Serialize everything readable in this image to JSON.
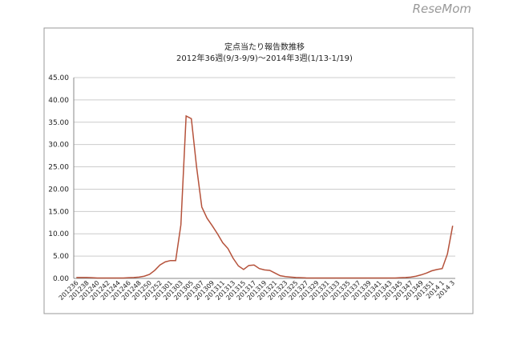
{
  "watermark": "ReseMom",
  "chart_data": {
    "type": "line",
    "title": "定点当たり報告数推移",
    "subtitle": "2012年36週(9/3-9/9)～2014年3週(1/13-1/19)",
    "categories": [
      "201236",
      null,
      "201238",
      null,
      "201240",
      null,
      "201242",
      null,
      "201244",
      null,
      "201246",
      null,
      "201248",
      null,
      "201250",
      null,
      "201252",
      null,
      "201301",
      null,
      "201303",
      null,
      "201305",
      null,
      "201307",
      null,
      "201309",
      null,
      "201311",
      null,
      "201313",
      null,
      "201315",
      null,
      "201317",
      null,
      "201319",
      null,
      "201321",
      null,
      "201323",
      null,
      "201325",
      null,
      "201327",
      null,
      "201329",
      null,
      "201331",
      null,
      "201333",
      null,
      "201335",
      null,
      "201337",
      null,
      "201339",
      null,
      "201341",
      null,
      "201343",
      null,
      "201345",
      null,
      "201347",
      null,
      "201349",
      null,
      "201351",
      null,
      "2014 1",
      null,
      "2014 3"
    ],
    "series": [
      {
        "name": "定点当たり報告数",
        "color": "#b5523b",
        "values": [
          0.2,
          0.2,
          0.2,
          0.15,
          0.1,
          0.1,
          0.1,
          0.1,
          0.1,
          0.1,
          0.15,
          0.2,
          0.3,
          0.5,
          0.9,
          1.8,
          3.0,
          3.7,
          4.0,
          4.0,
          12.0,
          36.4,
          35.8,
          25.0,
          16.0,
          13.5,
          11.8,
          10.0,
          8.0,
          6.7,
          4.5,
          2.8,
          2.0,
          2.9,
          3.0,
          2.2,
          1.9,
          1.8,
          1.2,
          0.6,
          0.4,
          0.3,
          0.2,
          0.15,
          0.1,
          0.1,
          0.1,
          0.1,
          0.1,
          0.1,
          0.1,
          0.1,
          0.1,
          0.1,
          0.1,
          0.1,
          0.1,
          0.1,
          0.1,
          0.1,
          0.1,
          0.1,
          0.15,
          0.2,
          0.3,
          0.5,
          0.8,
          1.2,
          1.7,
          2.0,
          2.2,
          5.5,
          11.8
        ]
      }
    ],
    "ylim": [
      0,
      45
    ],
    "yticks": [
      {
        "value": 0,
        "label": "0.00"
      },
      {
        "value": 5,
        "label": "5.00"
      },
      {
        "value": 10,
        "label": "10.00"
      },
      {
        "value": 15,
        "label": "15.00"
      },
      {
        "value": 20,
        "label": "20.00"
      },
      {
        "value": 25,
        "label": "25.00"
      },
      {
        "value": 30,
        "label": "30.00"
      },
      {
        "value": 35,
        "label": "35.00"
      },
      {
        "value": 40,
        "label": "40.00"
      },
      {
        "value": 45,
        "label": "45.00"
      }
    ],
    "grid": true
  }
}
